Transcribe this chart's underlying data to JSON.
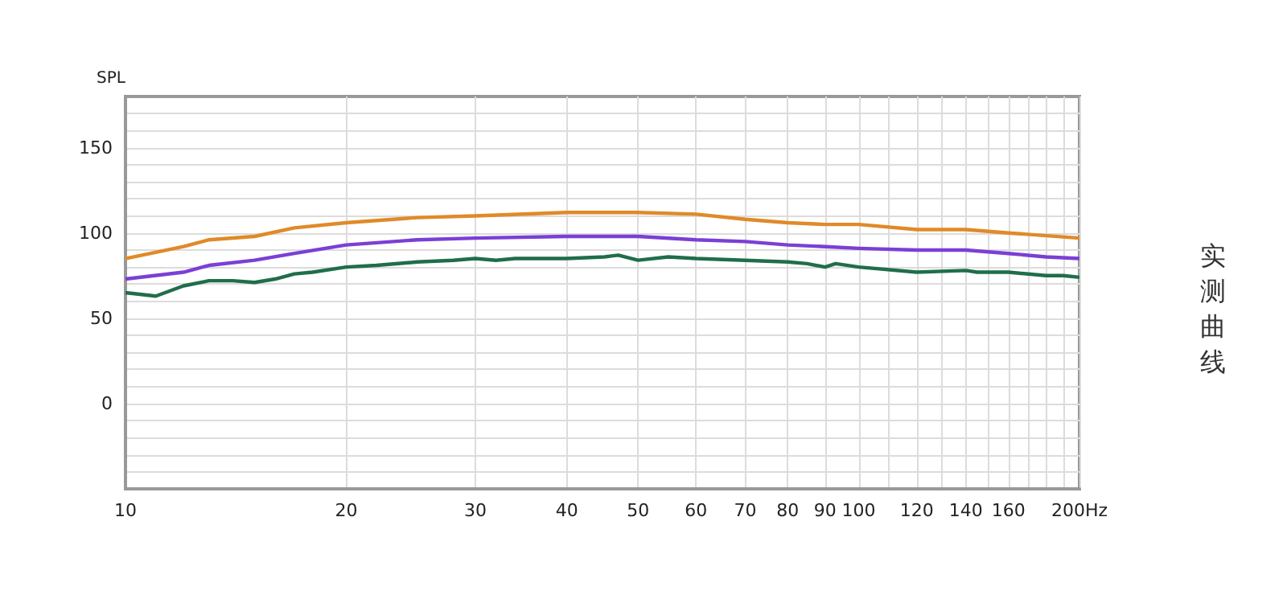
{
  "chart_data": {
    "type": "line",
    "ylabel": "SPL",
    "annotations": [
      "实测曲线"
    ],
    "log": "x",
    "grid": true,
    "marker": "none",
    "line_style": "solid",
    "xlim": [
      10,
      200
    ],
    "ylim": [
      -50,
      180
    ],
    "xticks": [
      10,
      20,
      30,
      40,
      50,
      60,
      70,
      80,
      90,
      100,
      {
        "value": 110,
        "label": null
      },
      120,
      {
        "value": 130,
        "label": null
      },
      140,
      {
        "value": 150,
        "label": null
      },
      160,
      {
        "value": 170,
        "label": null
      },
      {
        "value": 180,
        "label": null
      },
      {
        "value": 190,
        "label": null
      },
      {
        "value": 200,
        "label": "200Hz"
      }
    ],
    "yticks": [
      {
        "value": -40,
        "label": null
      },
      {
        "value": -30,
        "label": null
      },
      {
        "value": -20,
        "label": null
      },
      {
        "value": -10,
        "label": null
      },
      0,
      {
        "value": 10,
        "label": null
      },
      {
        "value": 20,
        "label": null
      },
      {
        "value": 30,
        "label": null
      },
      {
        "value": 40,
        "label": null
      },
      50,
      {
        "value": 60,
        "label": null
      },
      {
        "value": 70,
        "label": null
      },
      {
        "value": 80,
        "label": null
      },
      {
        "value": 90,
        "label": null
      },
      100,
      {
        "value": 110,
        "label": null
      },
      {
        "value": 120,
        "label": null
      },
      {
        "value": 130,
        "label": null
      },
      {
        "value": 140,
        "label": null
      },
      150,
      {
        "value": 160,
        "label": null
      },
      {
        "value": 170,
        "label": null
      }
    ],
    "series": [
      {
        "color": "#e08a28",
        "x": [
          10,
          12,
          13,
          15,
          17,
          20,
          25,
          30,
          40,
          50,
          60,
          70,
          80,
          90,
          100,
          120,
          140,
          160,
          200
        ],
        "values": [
          85,
          92,
          96,
          98,
          103,
          106,
          109,
          110,
          112,
          112,
          111,
          108,
          106,
          105,
          105,
          102,
          102,
          100,
          97
        ]
      },
      {
        "color": "#7b3fd6",
        "x": [
          10,
          12,
          13,
          15,
          17,
          20,
          25,
          30,
          40,
          50,
          60,
          70,
          80,
          90,
          100,
          120,
          140,
          160,
          180,
          200
        ],
        "values": [
          73,
          77,
          81,
          84,
          88,
          93,
          96,
          97,
          98,
          98,
          96,
          95,
          93,
          92,
          91,
          90,
          90,
          88,
          86,
          85
        ]
      },
      {
        "color": "#1f6e4a",
        "x": [
          10,
          11,
          12,
          13,
          14,
          15,
          16,
          17,
          18,
          20,
          22,
          25,
          28,
          30,
          32,
          34,
          40,
          45,
          47,
          50,
          55,
          60,
          70,
          80,
          85,
          90,
          93,
          100,
          120,
          140,
          145,
          160,
          180,
          190,
          200
        ],
        "values": [
          65,
          63,
          69,
          72,
          72,
          71,
          73,
          76,
          77,
          80,
          81,
          83,
          84,
          85,
          84,
          85,
          85,
          86,
          87,
          84,
          86,
          85,
          84,
          83,
          82,
          80,
          82,
          80,
          77,
          78,
          77,
          77,
          75,
          75,
          74
        ]
      }
    ]
  }
}
